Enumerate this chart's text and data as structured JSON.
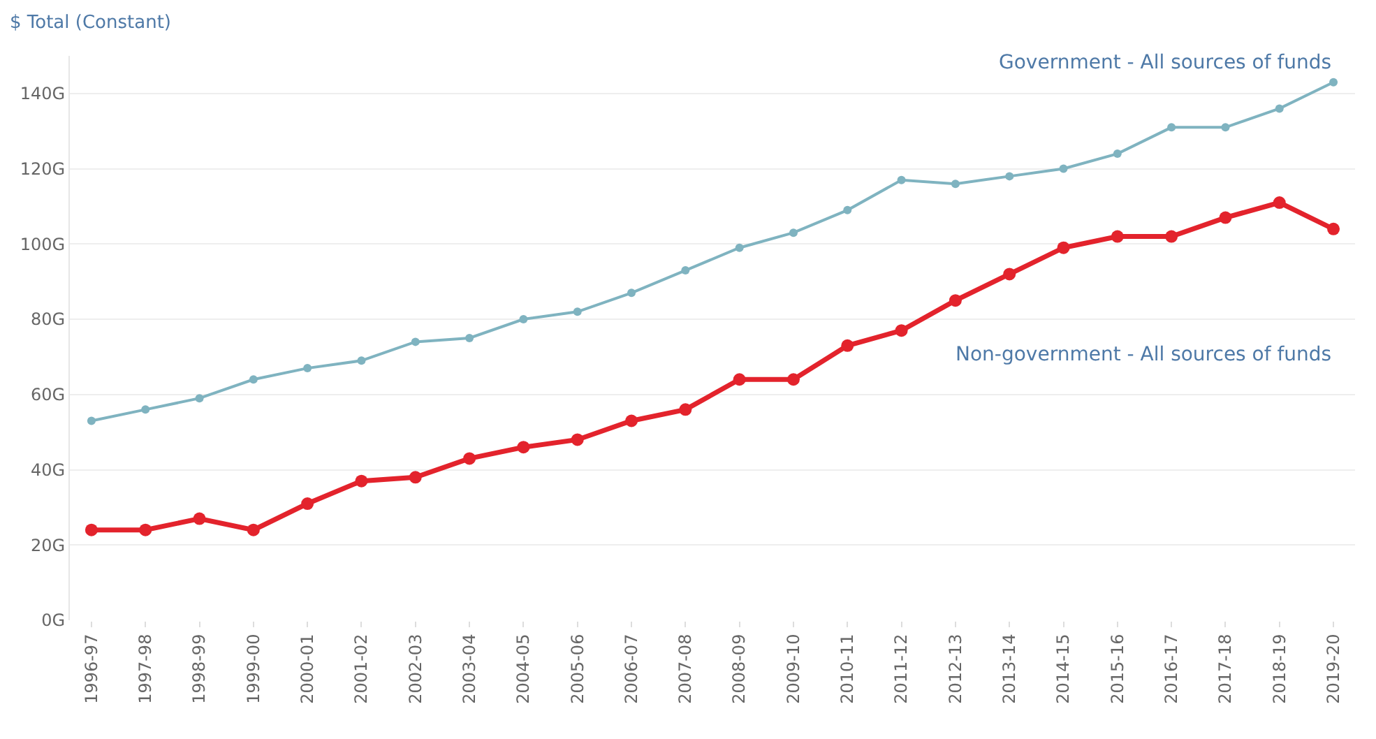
{
  "chart_data": {
    "type": "line",
    "ylabel": "$ Total (Constant)",
    "categories": [
      "1996-97",
      "1997-98",
      "1998-99",
      "1999-00",
      "2000-01",
      "2001-02",
      "2002-03",
      "2003-04",
      "2004-05",
      "2005-06",
      "2006-07",
      "2007-08",
      "2008-09",
      "2009-10",
      "2010-11",
      "2011-12",
      "2012-13",
      "2013-14",
      "2014-15",
      "2015-16",
      "2016-17",
      "2017-18",
      "2018-19",
      "2019-20"
    ],
    "series": [
      {
        "name": "Government - All sources of funds",
        "color": "#7fb3c0",
        "values": [
          53,
          56,
          59,
          64,
          67,
          69,
          74,
          75,
          80,
          82,
          87,
          93,
          99,
          103,
          109,
          117,
          116,
          118,
          120,
          124,
          131,
          131,
          136,
          143
        ]
      },
      {
        "name": "Non-government - All sources of funds",
        "color": "#e3232c",
        "values": [
          24,
          24,
          27,
          24,
          31,
          37,
          38,
          43,
          46,
          48,
          53,
          56,
          64,
          64,
          73,
          77,
          85,
          92,
          99,
          102,
          102,
          107,
          111,
          104
        ]
      }
    ],
    "ylim": [
      0,
      150
    ],
    "yticks": [
      {
        "value": 0,
        "label": "0G"
      },
      {
        "value": 20,
        "label": "20G"
      },
      {
        "value": 40,
        "label": "40G"
      },
      {
        "value": 60,
        "label": "60G"
      },
      {
        "value": 80,
        "label": "80G"
      },
      {
        "value": 100,
        "label": "100G"
      },
      {
        "value": 120,
        "label": "120G"
      },
      {
        "value": 140,
        "label": "140G"
      }
    ],
    "grid": "y",
    "legend": false,
    "marker": "circle",
    "line_style": "solid"
  }
}
